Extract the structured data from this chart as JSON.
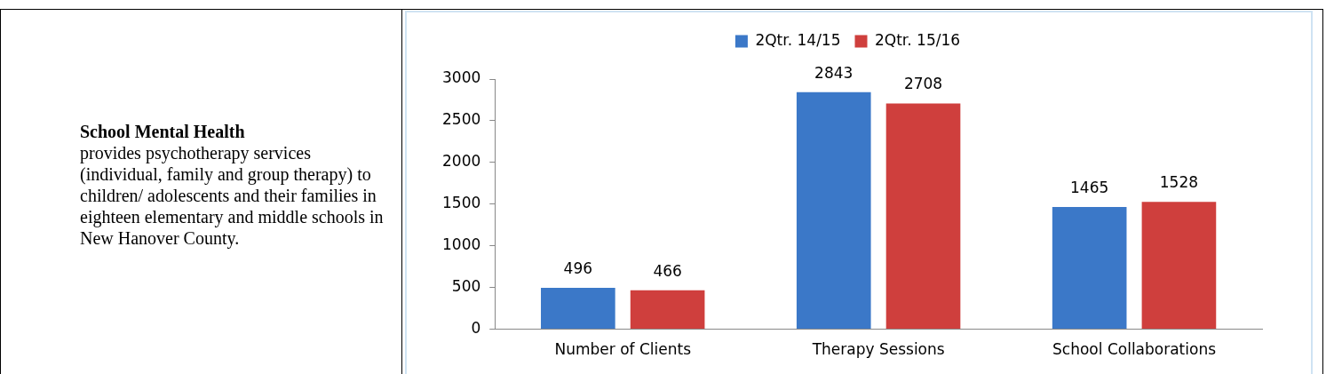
{
  "chart_data": {
    "type": "bar",
    "title": "School Mental Health",
    "subtitle": "provides psychotherapy services (individual, family and group therapy) to children/ adolescents and their families in eighteen elementary and middle schools in New Hanover County.",
    "categories": [
      "Number of Clients",
      "Therapy Sessions",
      "School Collaborations"
    ],
    "series": [
      {
        "name": "2Qtr. 14/15",
        "color": "#3b78c8",
        "values": [
          496,
          2843,
          1465
        ]
      },
      {
        "name": "2Qtr. 15/16",
        "color": "#cf3f3d",
        "values": [
          466,
          2708,
          1528
        ]
      }
    ],
    "ylim": [
      0,
      3000
    ],
    "yticks": [
      0,
      500,
      1000,
      1500,
      2000,
      2500,
      3000
    ],
    "grid": false,
    "legend": "top",
    "data_labels": true
  }
}
